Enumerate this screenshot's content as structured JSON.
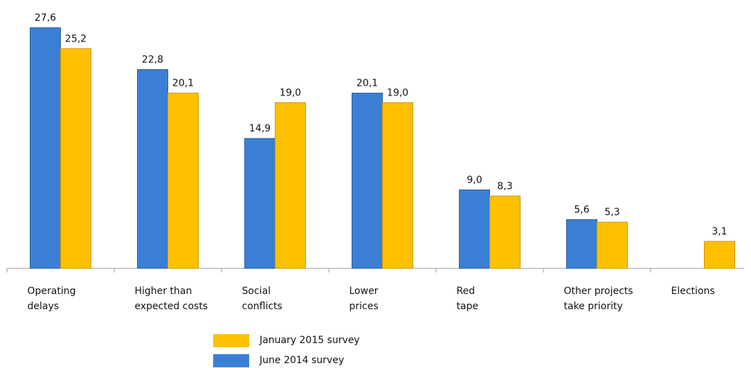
{
  "chart_data": {
    "type": "bar",
    "categories": [
      "Operating\ndelays",
      "Higher than\nexpected costs",
      "Social\nconflicts",
      "Lower\nprices",
      "Red\ntape",
      "Other projects\ntake priority",
      "Elections"
    ],
    "series": [
      {
        "name": "June 2014 survey",
        "color": "#3b7fd4",
        "values": [
          27.6,
          22.8,
          14.9,
          20.1,
          9.0,
          5.6,
          null
        ],
        "value_labels": [
          "27,6",
          "22,8",
          "14,9",
          "20,1",
          "9,0",
          "5,6",
          null
        ]
      },
      {
        "name": "January 2015 survey",
        "color": "#ffc000",
        "values": [
          25.2,
          20.1,
          19.0,
          19.0,
          8.3,
          5.3,
          3.1
        ],
        "value_labels": [
          "25,2",
          "20,1",
          "19,0",
          "19,0",
          "8,3",
          "5,3",
          "3,1"
        ]
      }
    ]
  }
}
